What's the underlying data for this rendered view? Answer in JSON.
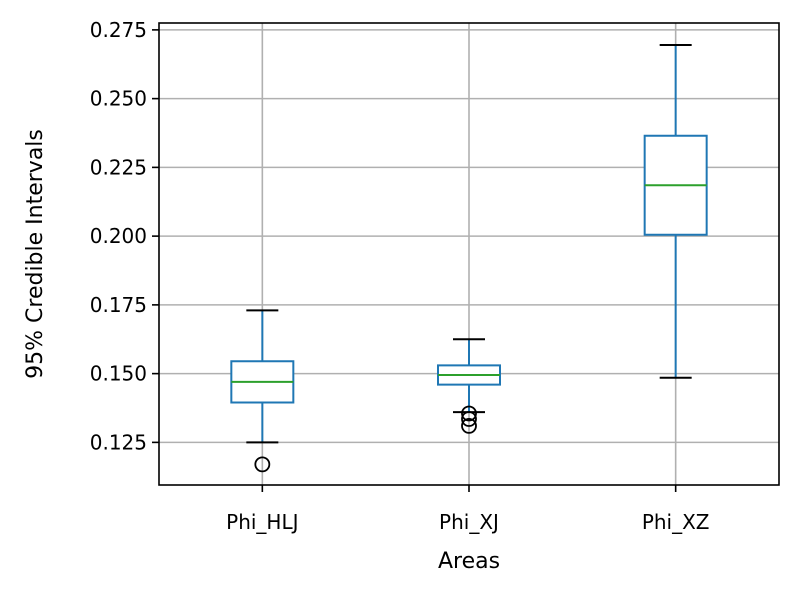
{
  "chart_data": {
    "type": "box",
    "xlabel": "Areas",
    "ylabel": "95% Credible Intervals",
    "ylim": [
      0.1095,
      0.2775
    ],
    "yticks": [
      0.125,
      0.15,
      0.175,
      0.2,
      0.225,
      0.25,
      0.275
    ],
    "ytick_labels": [
      "0.125",
      "0.150",
      "0.175",
      "0.200",
      "0.225",
      "0.250",
      "0.275"
    ],
    "grid": true,
    "colors": {
      "box": "#1f77b4",
      "median": "#2ca02c",
      "whisker_cap": "#000000",
      "grid": "#b0b0b0"
    },
    "categories": [
      "Phi_HLJ",
      "Phi_XJ",
      "Phi_XZ"
    ],
    "boxes": [
      {
        "whislo": 0.125,
        "q1": 0.1395,
        "median": 0.147,
        "q3": 0.1545,
        "whishi": 0.173,
        "fliers": [
          0.117
        ]
      },
      {
        "whislo": 0.136,
        "q1": 0.146,
        "median": 0.1495,
        "q3": 0.153,
        "whishi": 0.1625,
        "fliers": [
          0.1355,
          0.1335,
          0.131
        ]
      },
      {
        "whislo": 0.1485,
        "q1": 0.2005,
        "median": 0.2185,
        "q3": 0.2365,
        "whishi": 0.2695,
        "fliers": []
      }
    ]
  }
}
